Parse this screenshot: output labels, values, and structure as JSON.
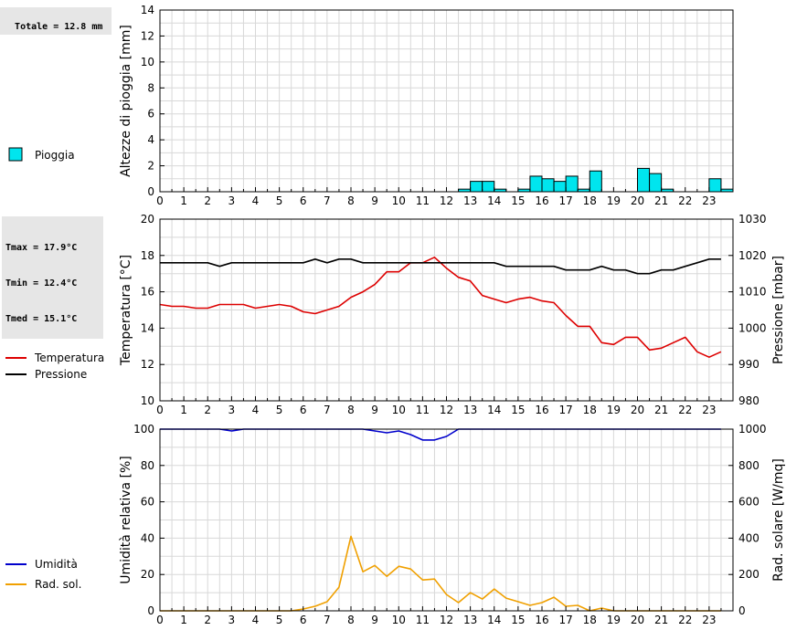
{
  "rain_total": "Totale = 12.8 mm",
  "temp_stats": [
    "Tmax = 17.9°C",
    "Tmin = 12.4°C",
    "Tmed = 15.1°C"
  ],
  "colors": {
    "rain_fill": "#00e5ee",
    "temperature": "#dd0000",
    "pressure": "#000000",
    "humidity": "#0000cc",
    "radiation": "#f0a000",
    "grid": "#d8d8d8"
  },
  "chart_data": [
    {
      "type": "bar",
      "ylabel": "Altezze di pioggia [mm]",
      "ylim": [
        0,
        14
      ],
      "yticks": [
        0,
        2,
        4,
        6,
        8,
        10,
        12,
        14
      ],
      "xlim": [
        0,
        24
      ],
      "xticks": [
        0,
        1,
        2,
        3,
        4,
        5,
        6,
        7,
        8,
        9,
        10,
        11,
        12,
        13,
        14,
        15,
        16,
        17,
        18,
        19,
        20,
        21,
        22,
        23
      ],
      "legend": [
        {
          "label": "Pioggia",
          "key": "rain_fill"
        }
      ],
      "bar_width": 0.5,
      "series": [
        {
          "name": "Pioggia",
          "x": [
            12.5,
            13.0,
            13.5,
            14.0,
            15.0,
            15.5,
            16.0,
            16.5,
            17.0,
            17.5,
            18.0,
            20.0,
            20.5,
            21.0,
            23.0,
            23.5
          ],
          "values": [
            0.2,
            0.8,
            0.8,
            0.2,
            0.2,
            1.2,
            1.0,
            0.8,
            1.2,
            0.2,
            1.6,
            1.8,
            1.4,
            0.2,
            1.0,
            0.2
          ]
        }
      ]
    },
    {
      "type": "line",
      "ylabel": "Temperatura [°C]",
      "ylabel_right": "Pressione [mbar]",
      "ylim": [
        10,
        20
      ],
      "yticks": [
        10,
        12,
        14,
        16,
        18,
        20
      ],
      "ylim_right": [
        980,
        1030
      ],
      "yticks_right": [
        980,
        990,
        1000,
        1010,
        1020,
        1030
      ],
      "xlim": [
        0,
        24
      ],
      "xticks": [
        0,
        1,
        2,
        3,
        4,
        5,
        6,
        7,
        8,
        9,
        10,
        11,
        12,
        13,
        14,
        15,
        16,
        17,
        18,
        19,
        20,
        21,
        22,
        23
      ],
      "legend": [
        {
          "label": "Temperatura",
          "key": "temperature"
        },
        {
          "label": "Pressione",
          "key": "pressure"
        }
      ],
      "series": [
        {
          "name": "Temperatura",
          "axis": "left",
          "x": [
            0,
            0.5,
            1,
            1.5,
            2,
            2.5,
            3,
            3.5,
            4,
            4.5,
            5,
            5.5,
            6,
            6.5,
            7,
            7.5,
            8,
            8.5,
            9,
            9.5,
            10,
            10.5,
            11,
            11.5,
            12,
            12.5,
            13,
            13.5,
            14,
            14.5,
            15,
            15.5,
            16,
            16.5,
            17,
            17.5,
            18,
            18.5,
            19,
            19.5,
            20,
            20.5,
            21,
            21.5,
            22,
            22.5,
            23,
            23.5
          ],
          "values": [
            15.3,
            15.2,
            15.2,
            15.1,
            15.1,
            15.3,
            15.3,
            15.3,
            15.1,
            15.2,
            15.3,
            15.2,
            14.9,
            14.8,
            15.0,
            15.2,
            15.7,
            16.0,
            16.4,
            17.1,
            17.1,
            17.6,
            17.6,
            17.9,
            17.3,
            16.8,
            16.6,
            15.8,
            15.6,
            15.4,
            15.6,
            15.7,
            15.5,
            15.4,
            14.7,
            14.1,
            14.1,
            13.2,
            13.1,
            13.5,
            13.5,
            12.8,
            12.9,
            13.2,
            13.5,
            12.7,
            12.4,
            12.7
          ]
        },
        {
          "name": "Pressione",
          "axis": "right",
          "x": [
            0,
            0.5,
            1,
            1.5,
            2,
            2.5,
            3,
            3.5,
            4,
            4.5,
            5,
            5.5,
            6,
            6.5,
            7,
            7.5,
            8,
            8.5,
            9,
            9.5,
            10,
            10.5,
            11,
            11.5,
            12,
            12.5,
            13,
            13.5,
            14,
            14.5,
            15,
            15.5,
            16,
            16.5,
            17,
            17.5,
            18,
            18.5,
            19,
            19.5,
            20,
            20.5,
            21,
            21.5,
            22,
            22.5,
            23,
            23.5
          ],
          "values": [
            1018,
            1018,
            1018,
            1018,
            1018,
            1017,
            1018,
            1018,
            1018,
            1018,
            1018,
            1018,
            1018,
            1019,
            1018,
            1019,
            1019,
            1018,
            1018,
            1018,
            1018,
            1018,
            1018,
            1018,
            1018,
            1018,
            1018,
            1018,
            1018,
            1017,
            1017,
            1017,
            1017,
            1017,
            1016,
            1016,
            1016,
            1017,
            1016,
            1016,
            1015,
            1015,
            1016,
            1016,
            1017,
            1018,
            1019,
            1019
          ]
        }
      ]
    },
    {
      "type": "line",
      "ylabel": "Umidità relativa [%]",
      "ylabel_right": "Rad. solare [W/mq]",
      "ylim": [
        0,
        100
      ],
      "yticks": [
        0,
        20,
        40,
        60,
        80,
        100
      ],
      "ylim_right": [
        0,
        1000
      ],
      "yticks_right": [
        0,
        200,
        400,
        600,
        800,
        1000
      ],
      "xlim": [
        0,
        24
      ],
      "xticks": [
        0,
        1,
        2,
        3,
        4,
        5,
        6,
        7,
        8,
        9,
        10,
        11,
        12,
        13,
        14,
        15,
        16,
        17,
        18,
        19,
        20,
        21,
        22,
        23
      ],
      "legend": [
        {
          "label": "Umidità",
          "key": "humidity"
        },
        {
          "label": "Rad. sol.",
          "key": "radiation"
        }
      ],
      "series": [
        {
          "name": "Umidità",
          "axis": "left",
          "x": [
            0,
            0.5,
            1,
            1.5,
            2,
            2.5,
            3,
            3.5,
            4,
            4.5,
            5,
            5.5,
            6,
            6.5,
            7,
            7.5,
            8,
            8.5,
            9,
            9.5,
            10,
            10.5,
            11,
            11.5,
            12,
            12.5,
            13,
            13.5,
            14,
            14.5,
            15,
            15.5,
            16,
            16.5,
            17,
            17.5,
            18,
            18.5,
            19,
            19.5,
            20,
            20.5,
            21,
            21.5,
            22,
            22.5,
            23,
            23.5
          ],
          "values": [
            100,
            100,
            100,
            100,
            100,
            100,
            99,
            100,
            100,
            100,
            100,
            100,
            100,
            100,
            100,
            100,
            100,
            100,
            99,
            98,
            99,
            97,
            94,
            94,
            96,
            100,
            100,
            100,
            100,
            100,
            100,
            100,
            100,
            100,
            100,
            100,
            100,
            100,
            100,
            100,
            100,
            100,
            100,
            100,
            100,
            100,
            100,
            100
          ]
        },
        {
          "name": "Rad. sol.",
          "axis": "right",
          "x": [
            0,
            0.5,
            1,
            1.5,
            2,
            2.5,
            3,
            3.5,
            4,
            4.5,
            5,
            5.5,
            6,
            6.5,
            7,
            7.5,
            8,
            8.5,
            9,
            9.5,
            10,
            10.5,
            11,
            11.5,
            12,
            12.5,
            13,
            13.5,
            14,
            14.5,
            15,
            15.5,
            16,
            16.5,
            17,
            17.5,
            18,
            18.5,
            19,
            19.5,
            20,
            20.5,
            21,
            21.5,
            22,
            22.5,
            23,
            23.5
          ],
          "values": [
            0,
            0,
            0,
            0,
            0,
            0,
            0,
            0,
            0,
            0,
            0,
            0,
            10,
            25,
            50,
            130,
            410,
            215,
            250,
            190,
            245,
            230,
            170,
            175,
            90,
            45,
            100,
            65,
            120,
            70,
            50,
            30,
            45,
            75,
            25,
            30,
            0,
            15,
            0,
            0,
            0,
            0,
            0,
            0,
            0,
            0,
            0,
            0
          ]
        }
      ]
    }
  ]
}
